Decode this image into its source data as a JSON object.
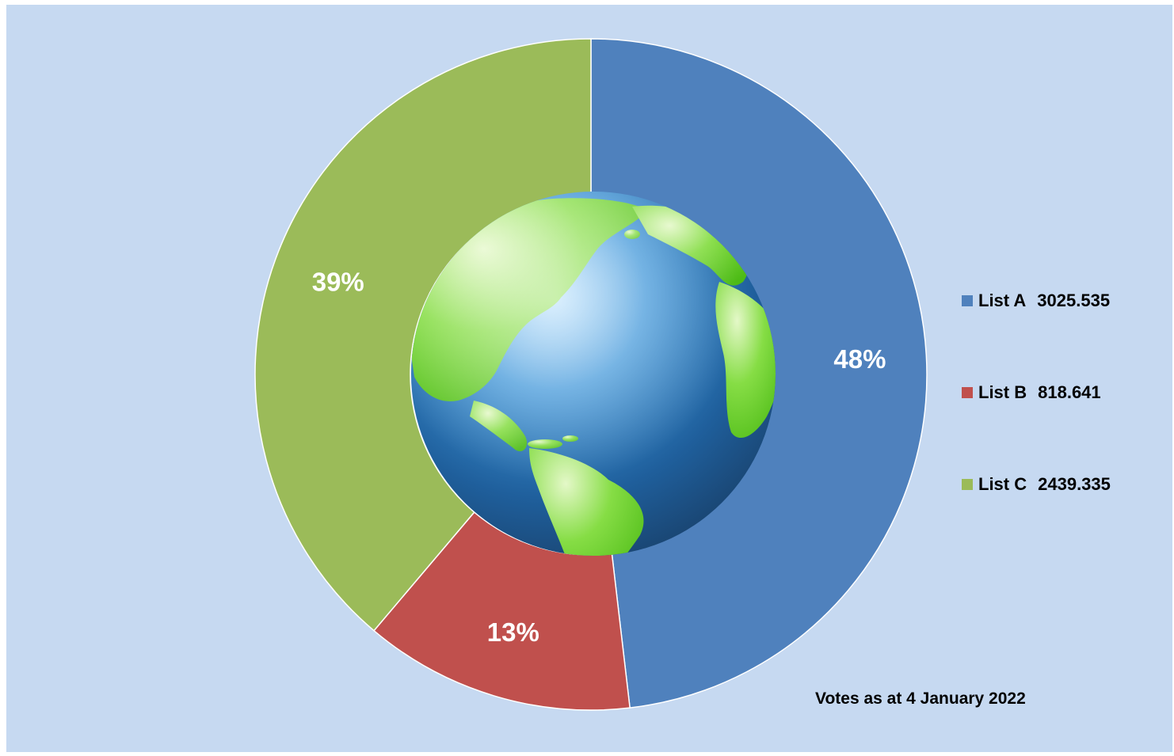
{
  "chart_data": {
    "type": "pie",
    "subtype": "doughnut",
    "categories": [
      "List A",
      "List B",
      "List C"
    ],
    "values": [
      3025.535,
      818.641,
      2439.335
    ],
    "value_labels": [
      "3025.535",
      "818.641",
      "2439.335"
    ],
    "percent_labels": [
      "48%",
      "13%",
      "39%"
    ],
    "colors": [
      "#4f81bd",
      "#c0504d",
      "#9bbb59"
    ],
    "legend_position": "right",
    "center_image": "globe",
    "annotation": "Votes as at 4 January 2022"
  }
}
